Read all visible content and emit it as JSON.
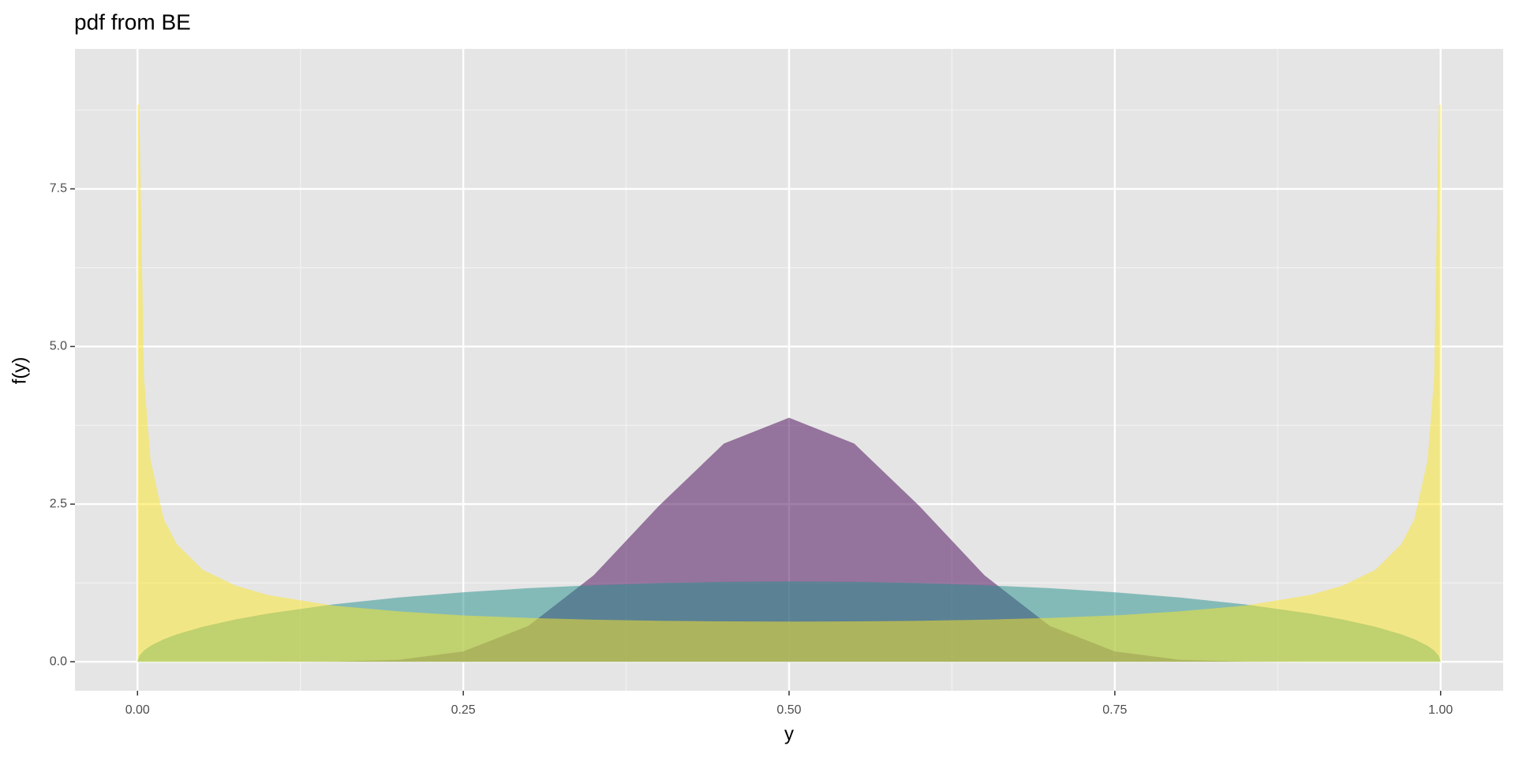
{
  "chart_data": {
    "type": "area",
    "title": "pdf from  BE",
    "x_label": "y",
    "y_label": "f(y)",
    "x": [
      0,
      0.0013,
      0.005,
      0.01,
      0.02,
      0.03,
      0.05,
      0.075,
      0.1,
      0.15,
      0.2,
      0.25,
      0.3,
      0.35,
      0.4,
      0.45,
      0.5,
      0.55,
      0.6,
      0.65,
      0.7,
      0.75,
      0.8,
      0.85,
      0.9,
      0.925,
      0.95,
      0.97,
      0.98,
      0.99,
      0.995,
      0.9987,
      1
    ],
    "series": [
      {
        "color": "#440154",
        "values": [
          0,
          0,
          0,
          0,
          0,
          0,
          0,
          0,
          0,
          0.0023,
          0.0286,
          0.163,
          0.569,
          1.37,
          2.47,
          3.46,
          3.87,
          3.46,
          2.47,
          1.37,
          0.569,
          0.163,
          0.0286,
          0.0023,
          0,
          0,
          0,
          0,
          0,
          0,
          0,
          0,
          0
        ]
      },
      {
        "color": "#21908C",
        "values": [
          0,
          0.092,
          0.18,
          0.253,
          0.356,
          0.434,
          0.555,
          0.671,
          0.764,
          0.909,
          1.019,
          1.102,
          1.167,
          1.214,
          1.247,
          1.267,
          1.273,
          1.267,
          1.247,
          1.214,
          1.167,
          1.102,
          1.019,
          0.909,
          0.764,
          0.671,
          0.555,
          0.434,
          0.356,
          0.253,
          0.18,
          0.092,
          0
        ]
      },
      {
        "color": "#FDE725",
        "values": [
          8.84,
          8.83,
          4.51,
          3.2,
          2.27,
          1.87,
          1.46,
          1.21,
          1.06,
          0.89,
          0.8,
          0.735,
          0.695,
          0.667,
          0.65,
          0.64,
          0.637,
          0.64,
          0.65,
          0.667,
          0.695,
          0.735,
          0.8,
          0.89,
          1.06,
          1.21,
          1.46,
          1.87,
          2.27,
          3.2,
          4.51,
          8.83,
          8.84
        ]
      }
    ],
    "opacity": 0.5,
    "xlim": [
      -0.048,
      1.048
    ],
    "ylim": [
      -0.46,
      9.72
    ],
    "xticks": [
      {
        "value": 0,
        "label": "0.00"
      },
      0.25,
      {
        "value": 0.5,
        "label": "0.50"
      },
      0.75,
      {
        "value": 1,
        "label": "1.00"
      }
    ],
    "yticks": [
      {
        "value": 0,
        "label": "0.0"
      },
      2.5,
      {
        "value": 5,
        "label": "5.0"
      },
      7.5
    ],
    "grid": true
  }
}
